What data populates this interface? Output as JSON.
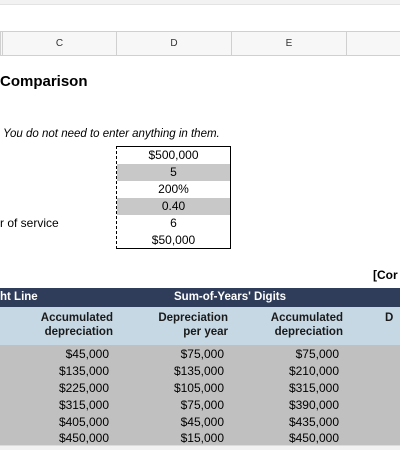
{
  "columns": [
    "C",
    "D",
    "E"
  ],
  "title": "Comparison",
  "note": "You do not need to enter anything in them.",
  "inputs": {
    "label_partial": "r of service",
    "values": [
      "$500,000",
      "5",
      "200%",
      "0.40",
      "6",
      "$50,000"
    ]
  },
  "corner_label": "[Cor",
  "bar": {
    "left": "ht Line",
    "right": "Sum-of-Years' Digits"
  },
  "headers": {
    "accum1": [
      "Accumulated",
      "depreciation"
    ],
    "dep": [
      "Depreciation",
      "per year"
    ],
    "accum2": [
      "Accumulated",
      "depreciation"
    ],
    "partial": "D"
  },
  "rows": [
    [
      "$45,000",
      "$75,000",
      "$75,000"
    ],
    [
      "$135,000",
      "$135,000",
      "$210,000"
    ],
    [
      "$225,000",
      "$105,000",
      "$315,000"
    ],
    [
      "$315,000",
      "$75,000",
      "$390,000"
    ],
    [
      "$405,000",
      "$45,000",
      "$435,000"
    ],
    [
      "$450,000",
      "$15,000",
      "$450,000"
    ]
  ]
}
